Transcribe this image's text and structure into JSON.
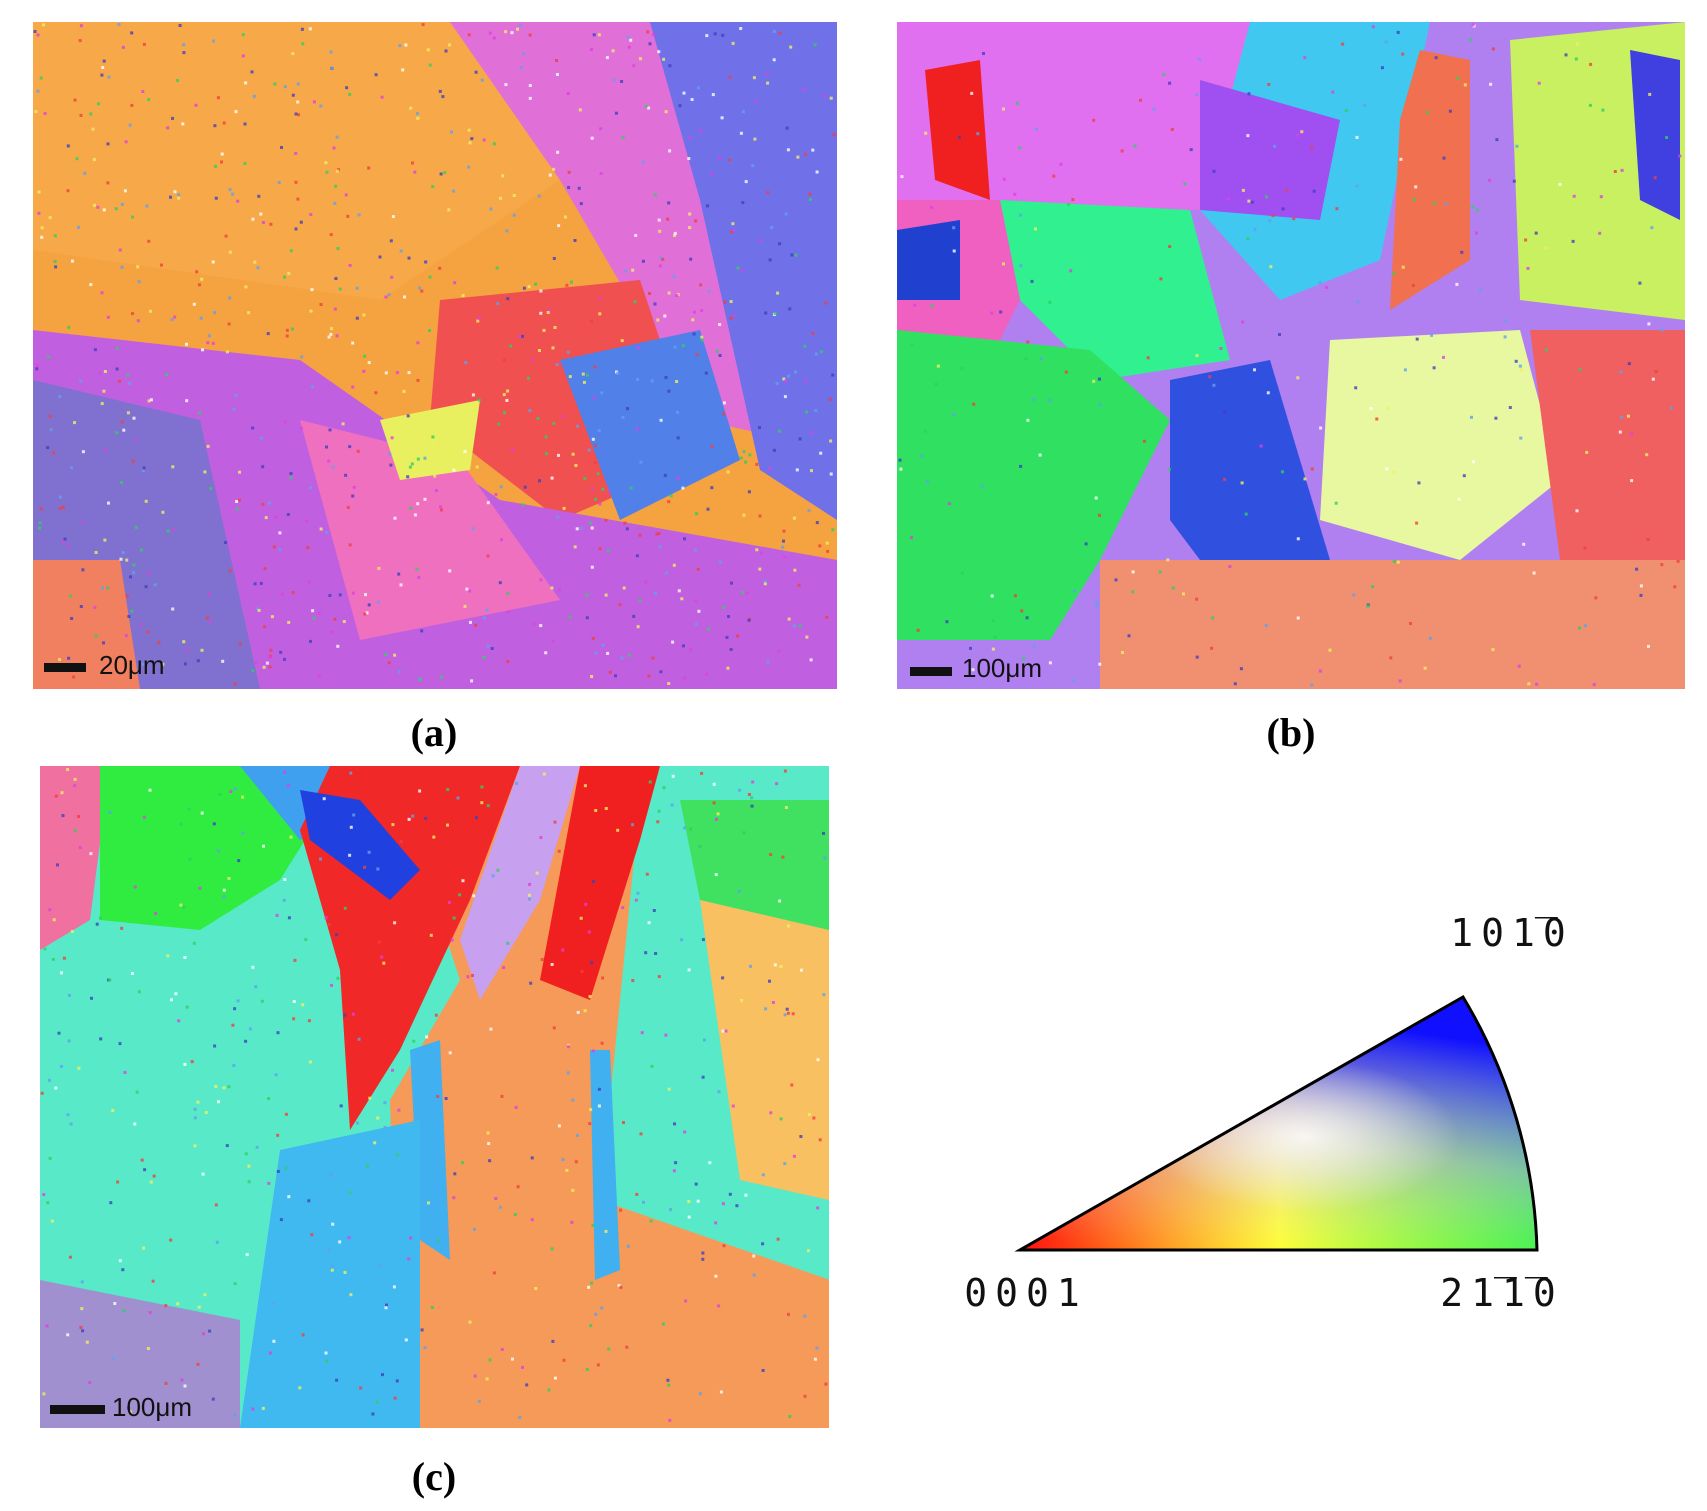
{
  "panels": [
    {
      "label": "(a)",
      "scale_bar": "20μm"
    },
    {
      "label": "(b)",
      "scale_bar": "100μm"
    },
    {
      "label": "(c)",
      "scale_bar": "100μm"
    }
  ],
  "legend": {
    "vertices": [
      "0001",
      "21̅1̅0",
      "101̅0"
    ]
  }
}
